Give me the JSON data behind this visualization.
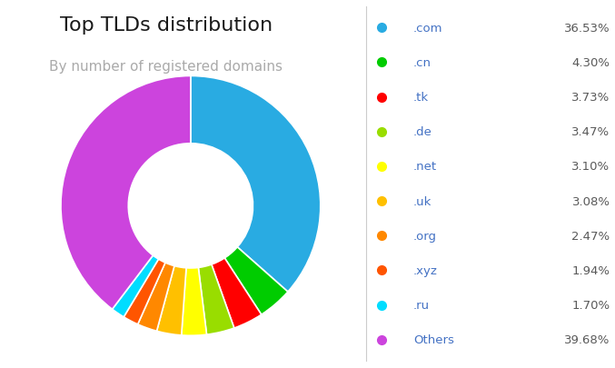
{
  "title": "Top TLDs distribution",
  "subtitle": "By number of registered domains",
  "labels": [
    ".com",
    ".cn",
    ".tk",
    ".de",
    ".net",
    ".uk",
    ".org",
    ".xyz",
    ".ru",
    "Others"
  ],
  "values": [
    36.53,
    4.3,
    3.73,
    3.47,
    3.1,
    3.08,
    2.47,
    1.94,
    1.7,
    39.68
  ],
  "colors": [
    "#29ABE2",
    "#00CC00",
    "#FF0000",
    "#99DD00",
    "#FFFF00",
    "#FFC000",
    "#FF8800",
    "#FF5500",
    "#00DDFF",
    "#CC44DD"
  ],
  "pct_labels": [
    "36.53%",
    "4.30%",
    "3.73%",
    "3.47%",
    "3.10%",
    "3.08%",
    "2.47%",
    "1.94%",
    "1.70%",
    "39.68%"
  ],
  "title_fontsize": 16,
  "subtitle_fontsize": 11,
  "legend_label_color": "#4472C4",
  "legend_pct_color": "#595959",
  "background_color": "#FFFFFF",
  "donut_width": 0.52,
  "start_angle": 90
}
